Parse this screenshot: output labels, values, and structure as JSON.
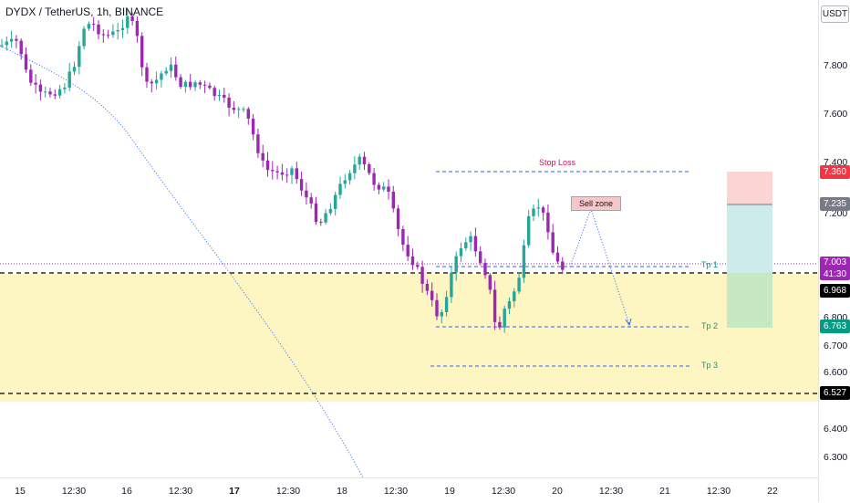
{
  "title": "DYDX / TetherUS, 1h, BINANCE",
  "currency": "USDT",
  "price_axis": {
    "ticks": [
      "7.800",
      "7.600",
      "7.400",
      "7.200",
      "6.800",
      "6.700",
      "6.600",
      "6.400",
      "6.300"
    ],
    "labels": {
      "stop": "7.360",
      "entry": "7.235",
      "last": "7.003",
      "countdown": "41:30",
      "line_top": "6.968",
      "tp2": "6.763",
      "line_bottom": "6.527"
    }
  },
  "time_axis": {
    "ticks": [
      {
        "label": "15",
        "bold": false
      },
      {
        "label": "12:30",
        "bold": false
      },
      {
        "label": "16",
        "bold": false
      },
      {
        "label": "12:30",
        "bold": false
      },
      {
        "label": "17",
        "bold": true
      },
      {
        "label": "12:30",
        "bold": false
      },
      {
        "label": "18",
        "bold": false
      },
      {
        "label": "12:30",
        "bold": false
      },
      {
        "label": "19",
        "bold": false
      },
      {
        "label": "12:30",
        "bold": false
      },
      {
        "label": "20",
        "bold": false
      },
      {
        "label": "12:30",
        "bold": false
      },
      {
        "label": "21",
        "bold": false
      },
      {
        "label": "12:30",
        "bold": false
      },
      {
        "label": "22",
        "bold": false
      }
    ]
  },
  "annotations": {
    "stop_loss": "Stop Loss",
    "sell_zone": "Sell zone",
    "tp1": "Tp 1",
    "tp2": "Tp 2",
    "tp3": "Tp 3"
  },
  "colors": {
    "bull": "#26a69a",
    "bear": "#9c27b0",
    "stop_label": "#f23645",
    "entry_label": "#787b86",
    "last_label": "#9c27b0",
    "tp_label": "#089981",
    "black_label": "#000000",
    "zone": "#fdf6c3",
    "dashed_blue": "#2962ff",
    "stop_text": "#c2185b",
    "tp_text": "#089981"
  }
}
